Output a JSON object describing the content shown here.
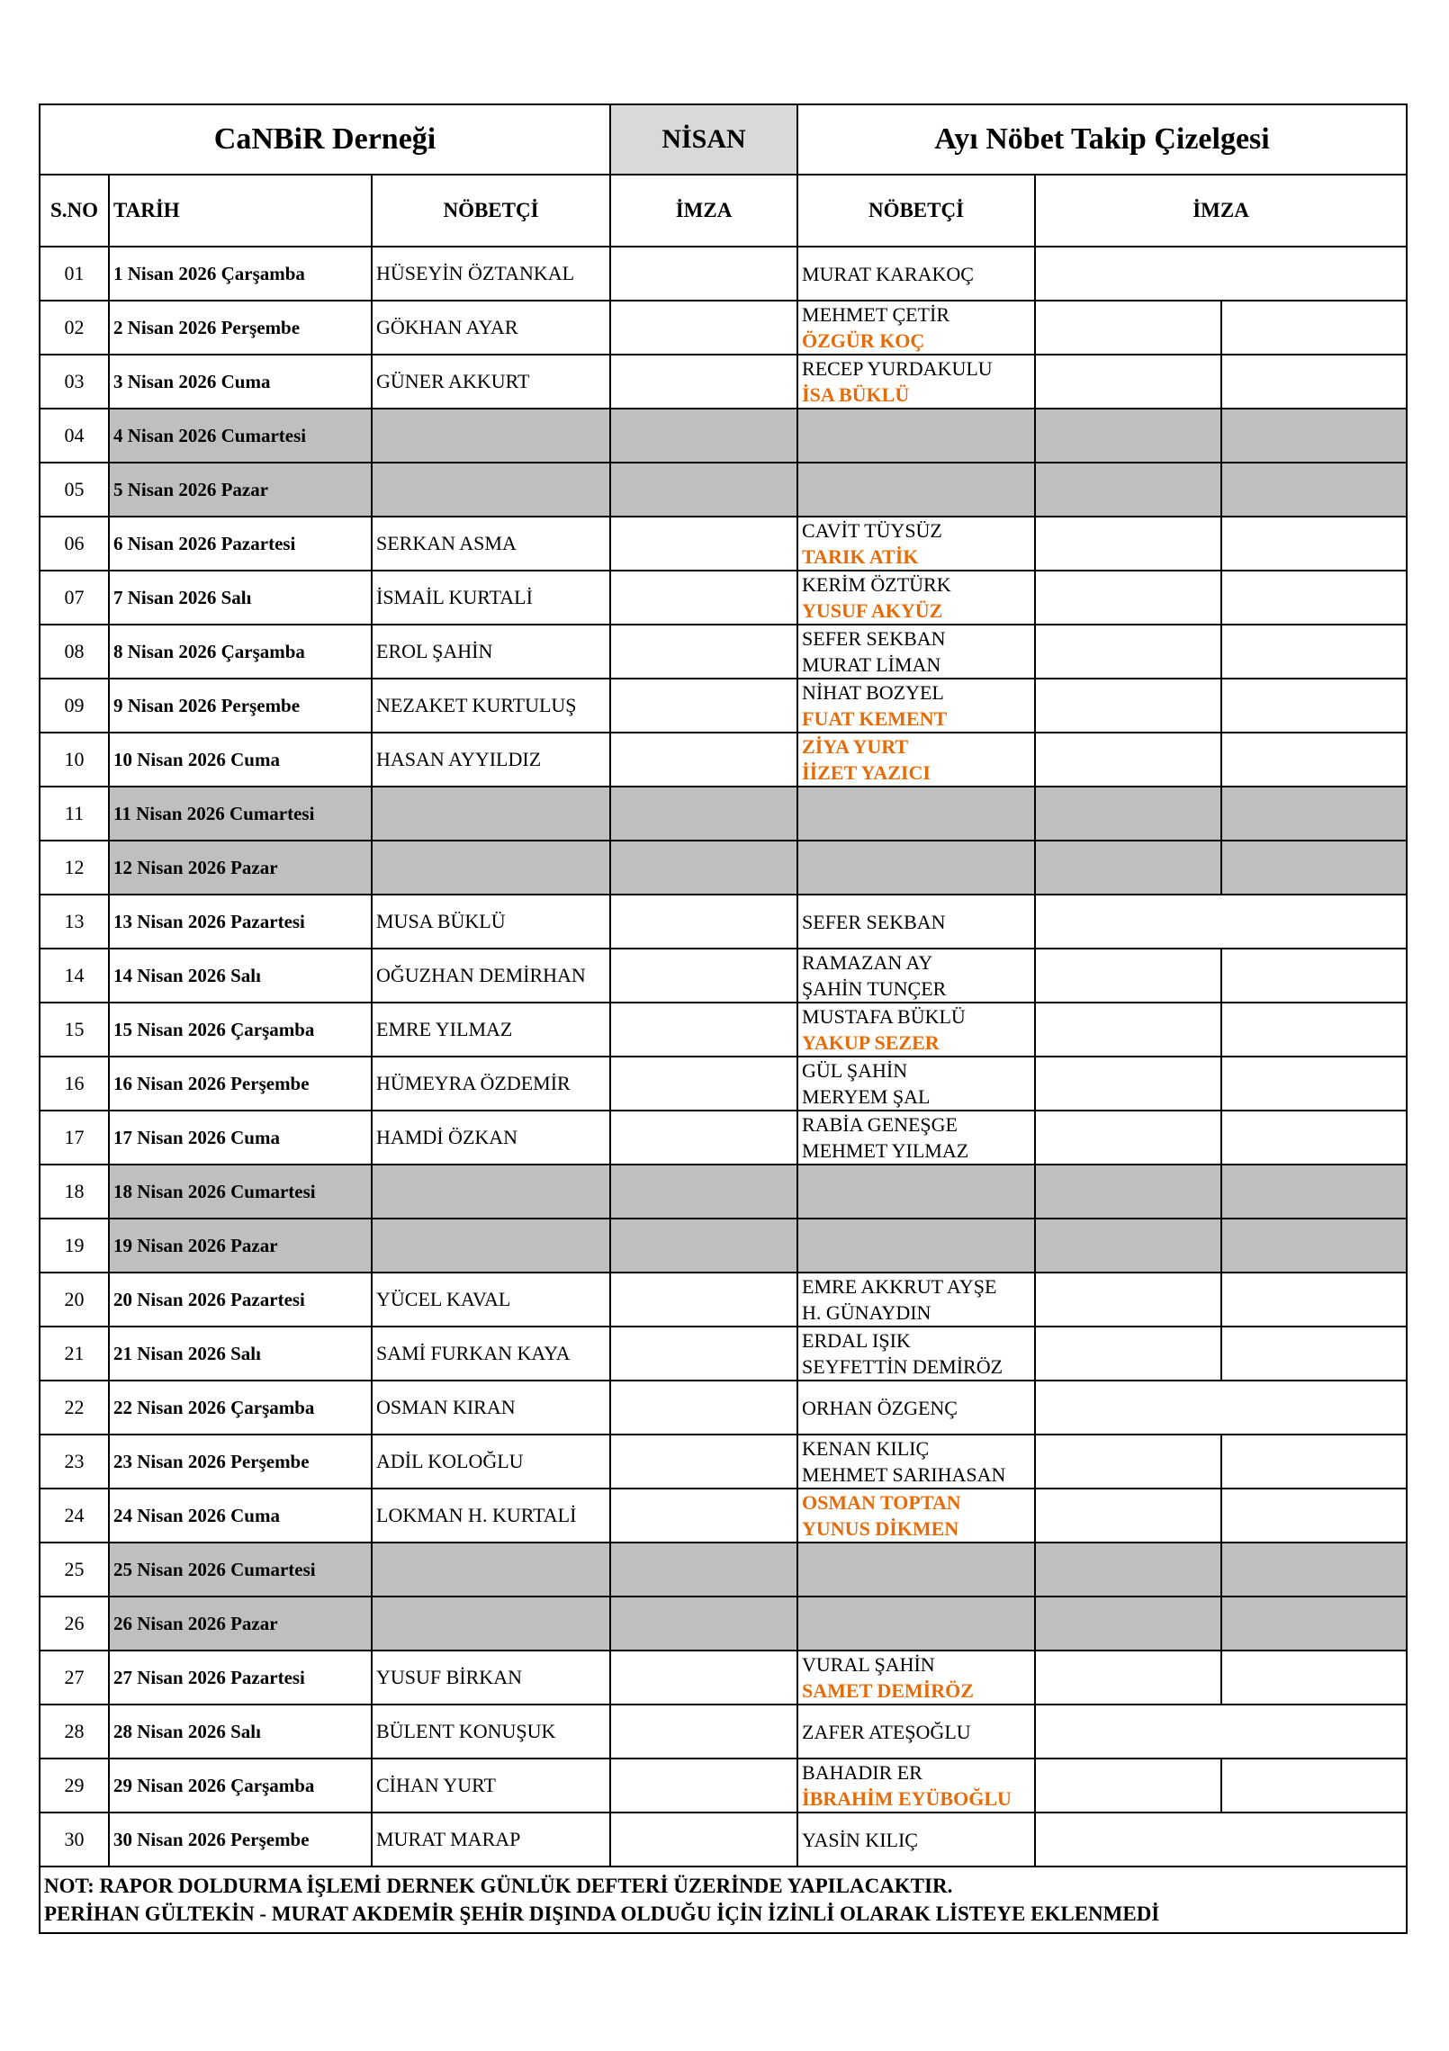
{
  "header": {
    "org": "CaNBiR Derneği",
    "month": "NİSAN",
    "subtitle": "Ayı Nöbet Takip Çizelgesi",
    "columns": [
      "S.NO",
      "TARİH",
      "NÖBETÇİ",
      "İMZA",
      "NÖBETÇİ",
      "İMZA"
    ]
  },
  "colors": {
    "highlight": "#e46c0a",
    "weekend": "#bfbfbf",
    "month_bg": "#d9d9d9"
  },
  "rows": [
    {
      "no": "01",
      "date": "1 Nisan 2026 Çarşamba",
      "duty1": "HÜSEYİN ÖZTANKAL",
      "duty2": [
        {
          "t": "MURAT KARAKOÇ",
          "hl": false
        }
      ]
    },
    {
      "no": "02",
      "date": "2 Nisan 2026 Perşembe",
      "duty1": "GÖKHAN AYAR",
      "duty2": [
        {
          "t": "MEHMET ÇETİR",
          "hl": false
        },
        {
          "t": "ÖZGÜR KOÇ",
          "hl": true
        }
      ]
    },
    {
      "no": "03",
      "date": "3 Nisan 2026 Cuma",
      "duty1": "GÜNER AKKURT",
      "duty2": [
        {
          "t": "RECEP YURDAKULU",
          "hl": false
        },
        {
          "t": "İSA BÜKLÜ",
          "hl": true
        }
      ]
    },
    {
      "no": "04",
      "date": "4 Nisan 2026 Cumartesi",
      "weekend": true
    },
    {
      "no": "05",
      "date": "5 Nisan 2026 Pazar",
      "weekend": true
    },
    {
      "no": "06",
      "date": "6 Nisan 2026 Pazartesi",
      "duty1": "SERKAN ASMA",
      "duty2": [
        {
          "t": "CAVİT TÜYSÜZ",
          "hl": false
        },
        {
          "t": "TARIK ATİK",
          "hl": true
        }
      ]
    },
    {
      "no": "07",
      "date": "7 Nisan 2026 Salı",
      "duty1": "İSMAİL KURTALİ",
      "duty2": [
        {
          "t": "KERİM ÖZTÜRK",
          "hl": false
        },
        {
          "t": "YUSUF AKYÜZ",
          "hl": true
        }
      ]
    },
    {
      "no": "08",
      "date": "8 Nisan 2026 Çarşamba",
      "duty1": "EROL ŞAHİN",
      "duty2": [
        {
          "t": "SEFER SEKBAN",
          "hl": false
        },
        {
          "t": "MURAT LİMAN",
          "hl": false
        }
      ]
    },
    {
      "no": "09",
      "date": "9 Nisan 2026 Perşembe",
      "duty1": "NEZAKET KURTULUŞ",
      "duty2": [
        {
          "t": "NİHAT BOZYEL",
          "hl": false
        },
        {
          "t": "FUAT KEMENT",
          "hl": true
        }
      ]
    },
    {
      "no": "10",
      "date": "10 Nisan 2026 Cuma",
      "duty1": "HASAN AYYILDIZ",
      "duty2": [
        {
          "t": "ZİYA YURT",
          "hl": true
        },
        {
          "t": "İİZET YAZICI",
          "hl": true
        }
      ]
    },
    {
      "no": "11",
      "date": "11 Nisan 2026 Cumartesi",
      "weekend": true
    },
    {
      "no": "12",
      "date": "12 Nisan 2026 Pazar",
      "weekend": true
    },
    {
      "no": "13",
      "date": "13 Nisan 2026 Pazartesi",
      "duty1": "MUSA BÜKLÜ",
      "duty2": [
        {
          "t": "SEFER SEKBAN",
          "hl": false
        }
      ]
    },
    {
      "no": "14",
      "date": "14 Nisan 2026 Salı",
      "duty1": "OĞUZHAN DEMİRHAN",
      "duty2": [
        {
          "t": "RAMAZAN AY",
          "hl": false
        },
        {
          "t": "ŞAHİN TUNÇER",
          "hl": false
        }
      ]
    },
    {
      "no": "15",
      "date": "15 Nisan 2026 Çarşamba",
      "duty1": "EMRE YILMAZ",
      "duty2": [
        {
          "t": "MUSTAFA BÜKLÜ",
          "hl": false
        },
        {
          "t": "YAKUP SEZER",
          "hl": true
        }
      ]
    },
    {
      "no": "16",
      "date": "16 Nisan 2026 Perşembe",
      "duty1": "HÜMEYRA ÖZDEMİR",
      "duty2": [
        {
          "t": "GÜL ŞAHİN",
          "hl": false
        },
        {
          "t": "MERYEM ŞAL",
          "hl": false
        }
      ]
    },
    {
      "no": "17",
      "date": "17 Nisan 2026 Cuma",
      "duty1": "HAMDİ ÖZKAN",
      "duty2": [
        {
          "t": "RABİA GENEŞGE",
          "hl": false
        },
        {
          "t": "MEHMET YILMAZ",
          "hl": false
        }
      ]
    },
    {
      "no": "18",
      "date": "18 Nisan 2026 Cumartesi",
      "weekend": true
    },
    {
      "no": "19",
      "date": "19 Nisan 2026 Pazar",
      "weekend": true
    },
    {
      "no": "20",
      "date": "20 Nisan 2026 Pazartesi",
      "duty1": "YÜCEL KAVAL",
      "duty2": [
        {
          "t": "EMRE AKKRUT     AYŞE",
          "hl": false
        },
        {
          "t": "H. GÜNAYDIN",
          "hl": false
        }
      ]
    },
    {
      "no": "21",
      "date": "21 Nisan 2026 Salı",
      "duty1": "SAMİ FURKAN KAYA",
      "duty2": [
        {
          "t": "ERDAL IŞIK",
          "hl": false
        },
        {
          "t": "SEYFETTİN DEMİRÖZ",
          "hl": false
        }
      ]
    },
    {
      "no": "22",
      "date": "22 Nisan 2026 Çarşamba",
      "duty1": "OSMAN KIRAN",
      "duty2": [
        {
          "t": "ORHAN ÖZGENÇ",
          "hl": false
        }
      ]
    },
    {
      "no": "23",
      "date": "23 Nisan 2026 Perşembe",
      "duty1": "ADİL KOLOĞLU",
      "duty2": [
        {
          "t": "KENAN KILIÇ",
          "hl": false
        },
        {
          "t": "MEHMET SARIHASAN",
          "hl": false
        }
      ]
    },
    {
      "no": "24",
      "date": "24 Nisan 2026 Cuma",
      "duty1": "LOKMAN H. KURTALİ",
      "duty2": [
        {
          "t": "OSMAN TOPTAN",
          "hl": true
        },
        {
          "t": "YUNUS DİKMEN",
          "hl": true
        }
      ]
    },
    {
      "no": "25",
      "date": "25 Nisan 2026 Cumartesi",
      "weekend": true
    },
    {
      "no": "26",
      "date": "26 Nisan 2026 Pazar",
      "weekend": true
    },
    {
      "no": "27",
      "date": "27 Nisan 2026 Pazartesi",
      "duty1": "YUSUF BİRKAN",
      "duty2": [
        {
          "t": "VURAL ŞAHİN",
          "hl": false
        },
        {
          "t": "SAMET DEMİRÖZ",
          "hl": true
        }
      ]
    },
    {
      "no": "28",
      "date": "28 Nisan 2026 Salı",
      "duty1": "BÜLENT KONUŞUK",
      "duty2": [
        {
          "t": "ZAFER ATEŞOĞLU",
          "hl": false
        }
      ]
    },
    {
      "no": "29",
      "date": "29 Nisan 2026 Çarşamba",
      "duty1": "CİHAN YURT",
      "duty2": [
        {
          "t": "BAHADIR ER",
          "hl": false
        },
        {
          "t": "İBRAHİM EYÜBOĞLU",
          "hl": true
        }
      ]
    },
    {
      "no": "30",
      "date": "30 Nisan 2026 Perşembe",
      "duty1": "MURAT MARAP",
      "duty2": [
        {
          "t": "YASİN KILIÇ",
          "hl": false
        }
      ]
    }
  ],
  "note": {
    "line1": "NOT: RAPOR DOLDURMA İŞLEMİ DERNEK GÜNLÜK DEFTERİ ÜZERİNDE YAPILACAKTIR.",
    "line2": "PERİHAN GÜLTEKİN - MURAT AKDEMİR ŞEHİR DIŞINDA OLDUĞU İÇİN  İZİNLİ OLARAK LİSTEYE EKLENMEDİ"
  }
}
